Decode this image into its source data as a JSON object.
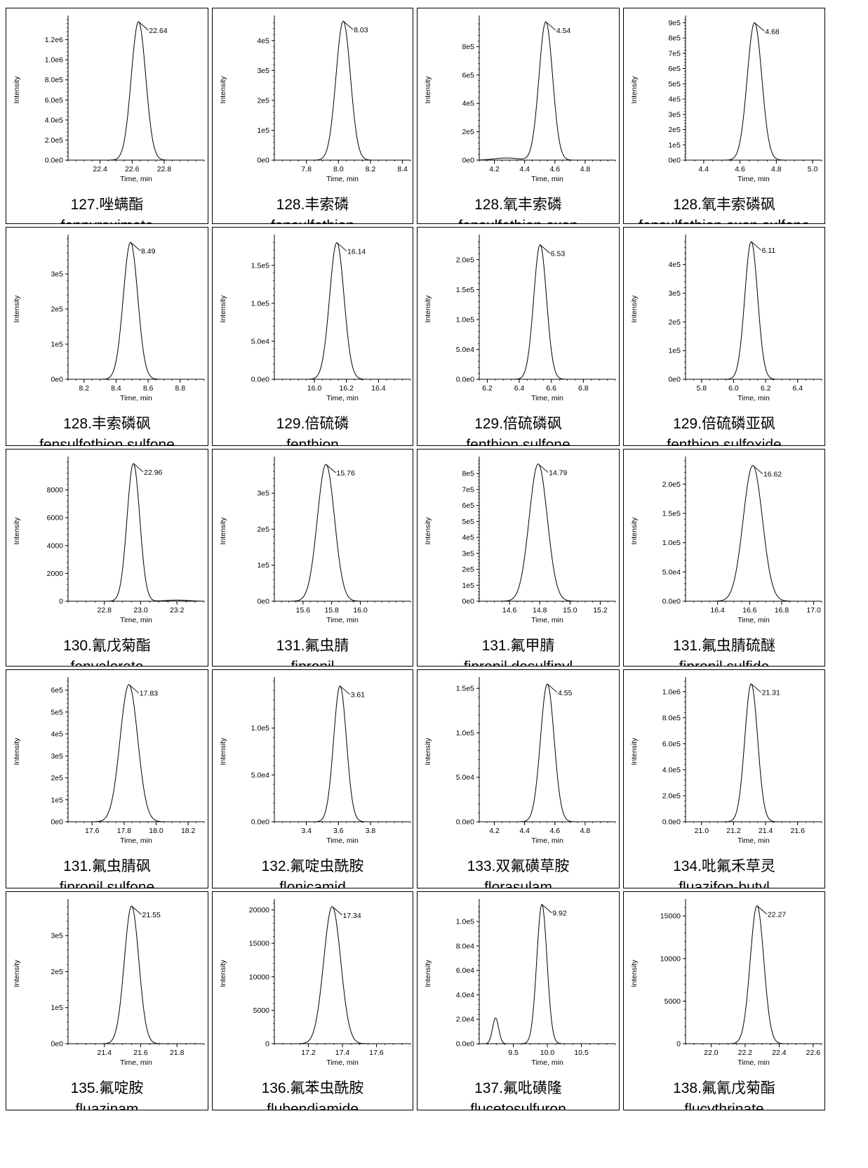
{
  "chart_data": [
    {
      "type": "line",
      "cn_label": "127.唑螨酯",
      "en_label": "fenpyroximate",
      "xlabel": "Time, min",
      "ylabel": "Intensity",
      "xlim": [
        22.2,
        23.05
      ],
      "ylim": [
        0,
        1400000
      ],
      "x_ticks": [
        22.4,
        22.6,
        22.8
      ],
      "x_tick_labels": [
        "22.4",
        "22.6",
        "22.8"
      ],
      "y_ticks": [
        0,
        200000,
        400000,
        600000,
        800000,
        1000000,
        1200000
      ],
      "y_tick_labels": [
        "0.0e0",
        "2.0e5",
        "4.0e5",
        "6.0e5",
        "8.0e5",
        "1.0e6",
        "1.2e6"
      ],
      "peaks": [
        {
          "x": 22.64,
          "height": 1380000,
          "width": 0.045
        }
      ],
      "apex_label": "22.64"
    },
    {
      "type": "line",
      "cn_label": "128.丰索磷",
      "en_label": "fensulfothion",
      "xlabel": "Time, min",
      "ylabel": "Intensity",
      "xlim": [
        7.6,
        8.45
      ],
      "ylim": [
        0,
        470000
      ],
      "x_ticks": [
        7.8,
        8.0,
        8.2,
        8.4
      ],
      "x_tick_labels": [
        "7.8",
        "8.0",
        "8.2",
        "8.4"
      ],
      "y_ticks": [
        0,
        100000,
        200000,
        300000,
        400000
      ],
      "y_tick_labels": [
        "0e0",
        "1e5",
        "2e5",
        "3e5",
        "4e5"
      ],
      "peaks": [
        {
          "x": 8.03,
          "height": 465000,
          "width": 0.045
        }
      ],
      "apex_label": "8.03"
    },
    {
      "type": "line",
      "cn_label": "128.氧丰索磷",
      "en_label": "fensulfothion oxon",
      "xlabel": "Time, min",
      "ylabel": "Intensity",
      "xlim": [
        4.1,
        5.0
      ],
      "ylim": [
        0,
        990000
      ],
      "x_ticks": [
        4.2,
        4.4,
        4.6,
        4.8
      ],
      "x_tick_labels": [
        "4.2",
        "4.4",
        "4.6",
        "4.8"
      ],
      "y_ticks": [
        0,
        200000,
        400000,
        600000,
        800000
      ],
      "y_tick_labels": [
        "0e0",
        "2e5",
        "4e5",
        "6e5",
        "8e5"
      ],
      "peaks": [
        {
          "x": 4.54,
          "height": 975000,
          "width": 0.045
        },
        {
          "x": 4.28,
          "height": 15000,
          "width": 0.08
        }
      ],
      "apex_label": "4.54"
    },
    {
      "type": "line",
      "cn_label": "128.氧丰索磷砜",
      "en_label": "fensulfothion oxon sulfone",
      "xlabel": "Time, min",
      "ylabel": "Intensity",
      "xlim": [
        4.3,
        5.05
      ],
      "ylim": [
        0,
        920000
      ],
      "x_ticks": [
        4.4,
        4.6,
        4.8,
        5.0
      ],
      "x_tick_labels": [
        "4.4",
        "4.6",
        "4.8",
        "5.0"
      ],
      "y_ticks": [
        0,
        100000,
        200000,
        300000,
        400000,
        500000,
        600000,
        700000,
        800000,
        900000
      ],
      "y_tick_labels": [
        "0e0",
        "1e5",
        "2e5",
        "3e5",
        "4e5",
        "5e5",
        "6e5",
        "7e5",
        "8e5",
        "9e5"
      ],
      "peaks": [
        {
          "x": 4.68,
          "height": 900000,
          "width": 0.04
        }
      ],
      "apex_label": "4.68"
    },
    {
      "type": "line",
      "cn_label": "128.丰索磷砜",
      "en_label": "fensulfothion sulfone",
      "xlabel": "Time, min",
      "ylabel": "Intensity",
      "xlim": [
        8.1,
        8.95
      ],
      "ylim": [
        0,
        400000
      ],
      "x_ticks": [
        8.2,
        8.4,
        8.6,
        8.8
      ],
      "x_tick_labels": [
        "8.2",
        "8.4",
        "8.6",
        "8.8"
      ],
      "y_ticks": [
        0,
        100000,
        200000,
        300000
      ],
      "y_tick_labels": [
        "0e0",
        "1e5",
        "2e5",
        "3e5"
      ],
      "peaks": [
        {
          "x": 8.49,
          "height": 390000,
          "width": 0.045
        }
      ],
      "apex_label": "8.49"
    },
    {
      "type": "line",
      "cn_label": "129.倍硫磷",
      "en_label": "fenthion",
      "xlabel": "Time, min",
      "ylabel": "Intensity",
      "xlim": [
        15.75,
        16.6
      ],
      "ylim": [
        0,
        185000
      ],
      "x_ticks": [
        16.0,
        16.2,
        16.4
      ],
      "x_tick_labels": [
        "16.0",
        "16.2",
        "16.4"
      ],
      "y_ticks": [
        0,
        50000,
        100000,
        150000
      ],
      "y_tick_labels": [
        "0.0e0",
        "5.0e4",
        "1.0e5",
        "1.5e5"
      ],
      "peaks": [
        {
          "x": 16.14,
          "height": 180000,
          "width": 0.045
        }
      ],
      "apex_label": "16.14"
    },
    {
      "type": "line",
      "cn_label": "129.倍硫磷砜",
      "en_label": "fenthion sulfone",
      "xlabel": "Time, min",
      "ylabel": "Intensity",
      "xlim": [
        6.15,
        7.0
      ],
      "ylim": [
        0,
        235000
      ],
      "x_ticks": [
        6.2,
        6.4,
        6.6,
        6.8
      ],
      "x_tick_labels": [
        "6.2",
        "6.4",
        "6.6",
        "6.8"
      ],
      "y_ticks": [
        0,
        50000,
        100000,
        150000,
        200000
      ],
      "y_tick_labels": [
        "0.0e0",
        "5.0e4",
        "1.0e5",
        "1.5e5",
        "2.0e5"
      ],
      "peaks": [
        {
          "x": 6.53,
          "height": 225000,
          "width": 0.04
        }
      ],
      "apex_label": "6.53"
    },
    {
      "type": "line",
      "cn_label": "129.倍硫磷亚砜",
      "en_label": "fenthion sulfoxide",
      "xlabel": "Time, min",
      "ylabel": "Intensity",
      "xlim": [
        5.7,
        6.55
      ],
      "ylim": [
        0,
        490000
      ],
      "x_ticks": [
        5.8,
        6.0,
        6.2,
        6.4
      ],
      "x_tick_labels": [
        "5.8",
        "6.0",
        "6.2",
        "6.4"
      ],
      "y_ticks": [
        0,
        100000,
        200000,
        300000,
        400000
      ],
      "y_tick_labels": [
        "0e0",
        "1e5",
        "2e5",
        "3e5",
        "4e5"
      ],
      "peaks": [
        {
          "x": 6.11,
          "height": 480000,
          "width": 0.04
        }
      ],
      "apex_label": "6.11"
    },
    {
      "type": "line",
      "cn_label": "130.氰戊菊酯",
      "en_label": "fenvalerate",
      "xlabel": "Time, min",
      "ylabel": "Intensity",
      "xlim": [
        22.6,
        23.35
      ],
      "ylim": [
        0,
        10100
      ],
      "x_ticks": [
        22.8,
        23.0,
        23.2
      ],
      "x_tick_labels": [
        "22.8",
        "23.0",
        "23.2"
      ],
      "y_ticks": [
        0,
        2000,
        4000,
        6000,
        8000
      ],
      "y_tick_labels": [
        "0",
        "2000",
        "4000",
        "6000",
        "8000"
      ],
      "peaks": [
        {
          "x": 22.96,
          "height": 9900,
          "width": 0.035
        },
        {
          "x": 23.2,
          "height": 80,
          "width": 0.06
        }
      ],
      "apex_label": "22.96"
    },
    {
      "type": "line",
      "cn_label": "131.氟虫腈",
      "en_label": "fipronil",
      "xlabel": "Time, min",
      "ylabel": "Intensity",
      "xlim": [
        15.4,
        16.35
      ],
      "ylim": [
        0,
        390000
      ],
      "x_ticks": [
        15.6,
        15.8,
        16.0
      ],
      "x_tick_labels": [
        "15.6",
        "15.8",
        "16.0"
      ],
      "y_ticks": [
        0,
        100000,
        200000,
        300000
      ],
      "y_tick_labels": [
        "0e0",
        "1e5",
        "2e5",
        "3e5"
      ],
      "peaks": [
        {
          "x": 15.76,
          "height": 380000,
          "width": 0.06
        }
      ],
      "apex_label": "15.76"
    },
    {
      "type": "line",
      "cn_label": "131.氟甲腈",
      "en_label": "fipronil desulfinyl",
      "xlabel": "Time, min",
      "ylabel": "Intensity",
      "xlim": [
        14.4,
        15.3
      ],
      "ylim": [
        0,
        880000
      ],
      "x_ticks": [
        14.6,
        14.8,
        15.0,
        15.2
      ],
      "x_tick_labels": [
        "14.6",
        "14.8",
        "15.0",
        "15.2"
      ],
      "y_ticks": [
        0,
        100000,
        200000,
        300000,
        400000,
        500000,
        600000,
        700000,
        800000
      ],
      "y_tick_labels": [
        "0e0",
        "1e5",
        "2e5",
        "3e5",
        "4e5",
        "5e5",
        "6e5",
        "7e5",
        "8e5"
      ],
      "peaks": [
        {
          "x": 14.79,
          "height": 860000,
          "width": 0.06
        }
      ],
      "apex_label": "14.79"
    },
    {
      "type": "line",
      "cn_label": "131.氟虫腈硫醚",
      "en_label": "fipronil sulfide",
      "xlabel": "Time, min",
      "ylabel": "Intensity",
      "xlim": [
        16.2,
        17.05
      ],
      "ylim": [
        0,
        240000
      ],
      "x_ticks": [
        16.4,
        16.6,
        16.8,
        17.0
      ],
      "x_tick_labels": [
        "16.4",
        "16.6",
        "16.8",
        "17.0"
      ],
      "y_ticks": [
        0,
        50000,
        100000,
        150000,
        200000
      ],
      "y_tick_labels": [
        "0.0e0",
        "5.0e4",
        "1.0e5",
        "1.5e5",
        "2.0e5"
      ],
      "peaks": [
        {
          "x": 16.62,
          "height": 232000,
          "width": 0.06
        }
      ],
      "apex_label": "16.62"
    },
    {
      "type": "line",
      "cn_label": "131.氟虫腈砜",
      "en_label": "fipronil sulfone",
      "xlabel": "Time, min",
      "ylabel": "Intensity",
      "xlim": [
        17.45,
        18.3
      ],
      "ylim": [
        0,
        640000
      ],
      "x_ticks": [
        17.6,
        17.8,
        18.0,
        18.2
      ],
      "x_tick_labels": [
        "17.6",
        "17.8",
        "18.0",
        "18.2"
      ],
      "y_ticks": [
        0,
        100000,
        200000,
        300000,
        400000,
        500000,
        600000
      ],
      "y_tick_labels": [
        "0e0",
        "1e5",
        "2e5",
        "3e5",
        "4e5",
        "5e5",
        "6e5"
      ],
      "peaks": [
        {
          "x": 17.83,
          "height": 625000,
          "width": 0.055
        }
      ],
      "apex_label": "17.83"
    },
    {
      "type": "line",
      "cn_label": "132.氟啶虫酰胺",
      "en_label": "flonicamid",
      "xlabel": "Time, min",
      "ylabel": "Intensity",
      "xlim": [
        3.2,
        4.05
      ],
      "ylim": [
        0,
        150000
      ],
      "x_ticks": [
        3.4,
        3.6,
        3.8
      ],
      "x_tick_labels": [
        "3.4",
        "3.6",
        "3.8"
      ],
      "y_ticks": [
        0,
        50000,
        100000
      ],
      "y_tick_labels": [
        "0.0e0",
        "5.0e4",
        "1.0e5"
      ],
      "peaks": [
        {
          "x": 3.61,
          "height": 145000,
          "width": 0.04
        }
      ],
      "apex_label": "3.61"
    },
    {
      "type": "line",
      "cn_label": "133.双氟磺草胺",
      "en_label": "florasulam",
      "xlabel": "Time, min",
      "ylabel": "Intensity",
      "xlim": [
        4.1,
        5.0
      ],
      "ylim": [
        0,
        158000
      ],
      "x_ticks": [
        4.2,
        4.4,
        4.6,
        4.8
      ],
      "x_tick_labels": [
        "4.2",
        "4.4",
        "4.6",
        "4.8"
      ],
      "y_ticks": [
        0,
        50000,
        100000,
        150000
      ],
      "y_tick_labels": [
        "0.0e0",
        "5.0e4",
        "1.0e5",
        "1.5e5"
      ],
      "peaks": [
        {
          "x": 4.55,
          "height": 155000,
          "width": 0.045
        }
      ],
      "apex_label": "4.55"
    },
    {
      "type": "line",
      "cn_label": "134.吡氟禾草灵",
      "en_label": "fluazifop-butyl",
      "xlabel": "Time, min",
      "ylabel": "Intensity",
      "xlim": [
        20.9,
        21.75
      ],
      "ylim": [
        0,
        1080000
      ],
      "x_ticks": [
        21.0,
        21.2,
        21.4,
        21.6
      ],
      "x_tick_labels": [
        "21.0",
        "21.2",
        "21.4",
        "21.6"
      ],
      "y_ticks": [
        0,
        200000,
        400000,
        600000,
        800000,
        1000000
      ],
      "y_tick_labels": [
        "0.0e0",
        "2.0e5",
        "4.0e5",
        "6.0e5",
        "8.0e5",
        "1.0e6"
      ],
      "peaks": [
        {
          "x": 21.31,
          "height": 1060000,
          "width": 0.04
        }
      ],
      "apex_label": "21.31"
    },
    {
      "type": "line",
      "cn_label": "135.氟啶胺",
      "en_label": "fluazinam",
      "xlabel": "Time, min",
      "ylabel": "Intensity",
      "xlim": [
        21.2,
        21.95
      ],
      "ylim": [
        0,
        390000
      ],
      "x_ticks": [
        21.4,
        21.6,
        21.8
      ],
      "x_tick_labels": [
        "21.4",
        "21.6",
        "21.8"
      ],
      "y_ticks": [
        0,
        100000,
        200000,
        300000
      ],
      "y_tick_labels": [
        "0e0",
        "1e5",
        "2e5",
        "3e5"
      ],
      "peaks": [
        {
          "x": 21.55,
          "height": 382000,
          "width": 0.04
        }
      ],
      "apex_label": "21.55"
    },
    {
      "type": "line",
      "cn_label": "136.氟苯虫酰胺",
      "en_label": "flubendiamide",
      "xlabel": "Time, min",
      "ylabel": "Intensity",
      "xlim": [
        17.0,
        17.8
      ],
      "ylim": [
        0,
        21000
      ],
      "x_ticks": [
        17.2,
        17.4,
        17.6
      ],
      "x_tick_labels": [
        "17.2",
        "17.4",
        "17.6"
      ],
      "y_ticks": [
        0,
        5000,
        10000,
        15000,
        20000
      ],
      "y_tick_labels": [
        "0",
        "5000",
        "10000",
        "15000",
        "20000"
      ],
      "peaks": [
        {
          "x": 17.34,
          "height": 20500,
          "width": 0.05
        }
      ],
      "apex_label": "17.34"
    },
    {
      "type": "line",
      "cn_label": "137.氟吡磺隆",
      "en_label": "flucetosulfuron",
      "xlabel": "Time, min",
      "ylabel": "Intensity",
      "xlim": [
        9.0,
        11.0
      ],
      "ylim": [
        0,
        115000
      ],
      "x_ticks": [
        9.5,
        10.0,
        10.5
      ],
      "x_tick_labels": [
        "9.5",
        "10.0",
        "10.5"
      ],
      "y_ticks": [
        0,
        20000,
        40000,
        60000,
        80000,
        100000
      ],
      "y_tick_labels": [
        "0.0e0",
        "2.0e4",
        "4.0e4",
        "6.0e4",
        "8.0e4",
        "1.0e5"
      ],
      "peaks": [
        {
          "x": 9.92,
          "height": 114000,
          "width": 0.075
        },
        {
          "x": 9.24,
          "height": 21000,
          "width": 0.045
        }
      ],
      "apex_label": "9.92"
    },
    {
      "type": "line",
      "cn_label": "138.氟氰戊菊酯",
      "en_label": "flucythrinate",
      "xlabel": "Time, min",
      "ylabel": "Intensity",
      "xlim": [
        21.85,
        22.65
      ],
      "ylim": [
        0,
        16500
      ],
      "x_ticks": [
        22.0,
        22.2,
        22.4,
        22.6
      ],
      "x_tick_labels": [
        "22.0",
        "22.2",
        "22.4",
        "22.6"
      ],
      "y_ticks": [
        0,
        5000,
        10000,
        15000
      ],
      "y_tick_labels": [
        "0",
        "5000",
        "10000",
        "15000"
      ],
      "peaks": [
        {
          "x": 22.27,
          "height": 16200,
          "width": 0.04
        }
      ],
      "apex_label": "22.27"
    }
  ]
}
